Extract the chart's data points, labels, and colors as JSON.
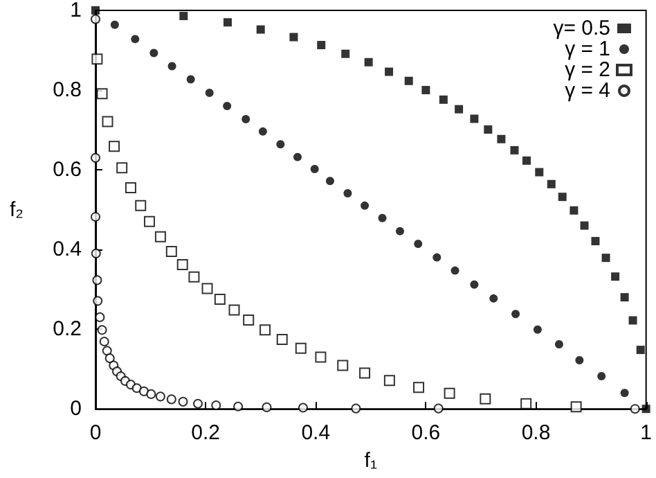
{
  "chart_data": {
    "type": "scatter",
    "xlabel": "f₁",
    "ylabel": "f₂",
    "xlim": [
      0,
      1
    ],
    "ylim": [
      0,
      1
    ],
    "xticks": [
      0,
      0.2,
      0.4,
      0.6,
      0.8,
      1
    ],
    "yticks": [
      0,
      0.2,
      0.4,
      0.6,
      0.8,
      1
    ],
    "grid": false,
    "legend": "top right",
    "series": [
      {
        "name": "γ= 0.5",
        "color": "#000000",
        "marker": "square",
        "x": [
          0,
          0.16,
          0.24,
          0.3,
          0.36,
          0.41,
          0.454,
          0.496,
          0.533,
          0.569,
          0.6,
          0.632,
          0.66,
          0.688,
          0.713,
          0.737,
          0.761,
          0.783,
          0.806,
          0.828,
          0.848,
          0.869,
          0.888,
          0.908,
          0.927,
          0.944,
          0.961,
          0.976,
          0.99,
          1
        ],
        "values": [
          1,
          0.986,
          0.97,
          0.952,
          0.933,
          0.913,
          0.891,
          0.87,
          0.846,
          0.823,
          0.8,
          0.776,
          0.752,
          0.728,
          0.701,
          0.677,
          0.649,
          0.623,
          0.594,
          0.564,
          0.532,
          0.498,
          0.46,
          0.421,
          0.379,
          0.332,
          0.28,
          0.222,
          0.148,
          0
        ]
      },
      {
        "name": "γ = 1",
        "color": "#000000",
        "marker": "circle",
        "x": [
          0.035,
          0.072,
          0.106,
          0.139,
          0.173,
          0.207,
          0.239,
          0.273,
          0.304,
          0.336,
          0.367,
          0.398,
          0.426,
          0.458,
          0.489,
          0.521,
          0.553,
          0.586,
          0.62,
          0.653,
          0.688,
          0.723,
          0.763,
          0.803,
          0.842,
          0.879,
          0.919,
          0.961
        ],
        "values": [
          0.964,
          0.928,
          0.893,
          0.86,
          0.827,
          0.793,
          0.76,
          0.727,
          0.696,
          0.664,
          0.632,
          0.602,
          0.572,
          0.541,
          0.51,
          0.479,
          0.446,
          0.414,
          0.38,
          0.347,
          0.312,
          0.277,
          0.238,
          0.199,
          0.162,
          0.122,
          0.082,
          0.04
        ]
      },
      {
        "name": "γ = 2",
        "color": "#000000",
        "marker": "square-open",
        "x": [
          0.003,
          0.012,
          0.022,
          0.034,
          0.048,
          0.064,
          0.082,
          0.098,
          0.118,
          0.138,
          0.158,
          0.179,
          0.203,
          0.226,
          0.252,
          0.278,
          0.308,
          0.339,
          0.373,
          0.409,
          0.449,
          0.489,
          0.534,
          0.587,
          0.643,
          0.708,
          0.782,
          0.873
        ],
        "values": [
          0.878,
          0.791,
          0.721,
          0.659,
          0.605,
          0.555,
          0.51,
          0.47,
          0.432,
          0.395,
          0.362,
          0.331,
          0.302,
          0.275,
          0.248,
          0.223,
          0.198,
          0.174,
          0.152,
          0.13,
          0.109,
          0.09,
          0.071,
          0.054,
          0.039,
          0.025,
          0.013,
          0.005
        ]
      },
      {
        "name": "γ = 4",
        "color": "#000000",
        "marker": "circle-open",
        "x": [
          0,
          0,
          0,
          0.001,
          0.003,
          0.004,
          0.008,
          0.012,
          0.016,
          0.021,
          0.026,
          0.033,
          0.039,
          0.046,
          0.054,
          0.064,
          0.075,
          0.088,
          0.101,
          0.118,
          0.138,
          0.159,
          0.186,
          0.219,
          0.259,
          0.311,
          0.377,
          0.473,
          0.623,
          0.98
        ],
        "values": [
          0.978,
          0.63,
          0.482,
          0.39,
          0.323,
          0.271,
          0.23,
          0.198,
          0.169,
          0.146,
          0.127,
          0.109,
          0.094,
          0.082,
          0.07,
          0.061,
          0.052,
          0.044,
          0.037,
          0.031,
          0.024,
          0.018,
          0.013,
          0.009,
          0.006,
          0.004,
          0.003,
          0.001,
          0.001,
          0
        ]
      }
    ]
  }
}
